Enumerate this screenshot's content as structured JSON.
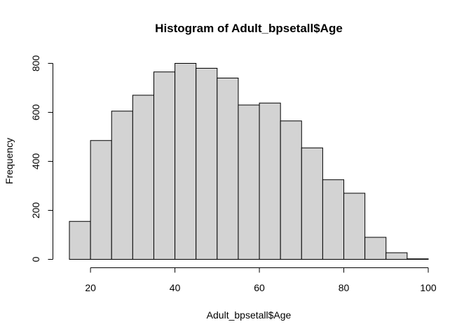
{
  "chart_data": {
    "type": "bar",
    "title": "Histogram of Adult_bpsetall$Age",
    "xlabel": "Adult_bpsetall$Age",
    "ylabel": "Frequency",
    "bin_edges": [
      15,
      20,
      25,
      30,
      35,
      40,
      45,
      50,
      55,
      60,
      65,
      70,
      75,
      80,
      85,
      90,
      95,
      100
    ],
    "values": [
      155,
      485,
      605,
      670,
      765,
      800,
      780,
      740,
      630,
      638,
      565,
      455,
      325,
      270,
      90,
      27,
      2
    ],
    "xlim": [
      15,
      100
    ],
    "ylim": [
      0,
      800
    ],
    "xticks": [
      20,
      40,
      60,
      80,
      100
    ],
    "yticks": [
      0,
      200,
      400,
      600,
      800
    ],
    "bar_color": "#d3d3d3",
    "grid": false,
    "legend": "none"
  }
}
